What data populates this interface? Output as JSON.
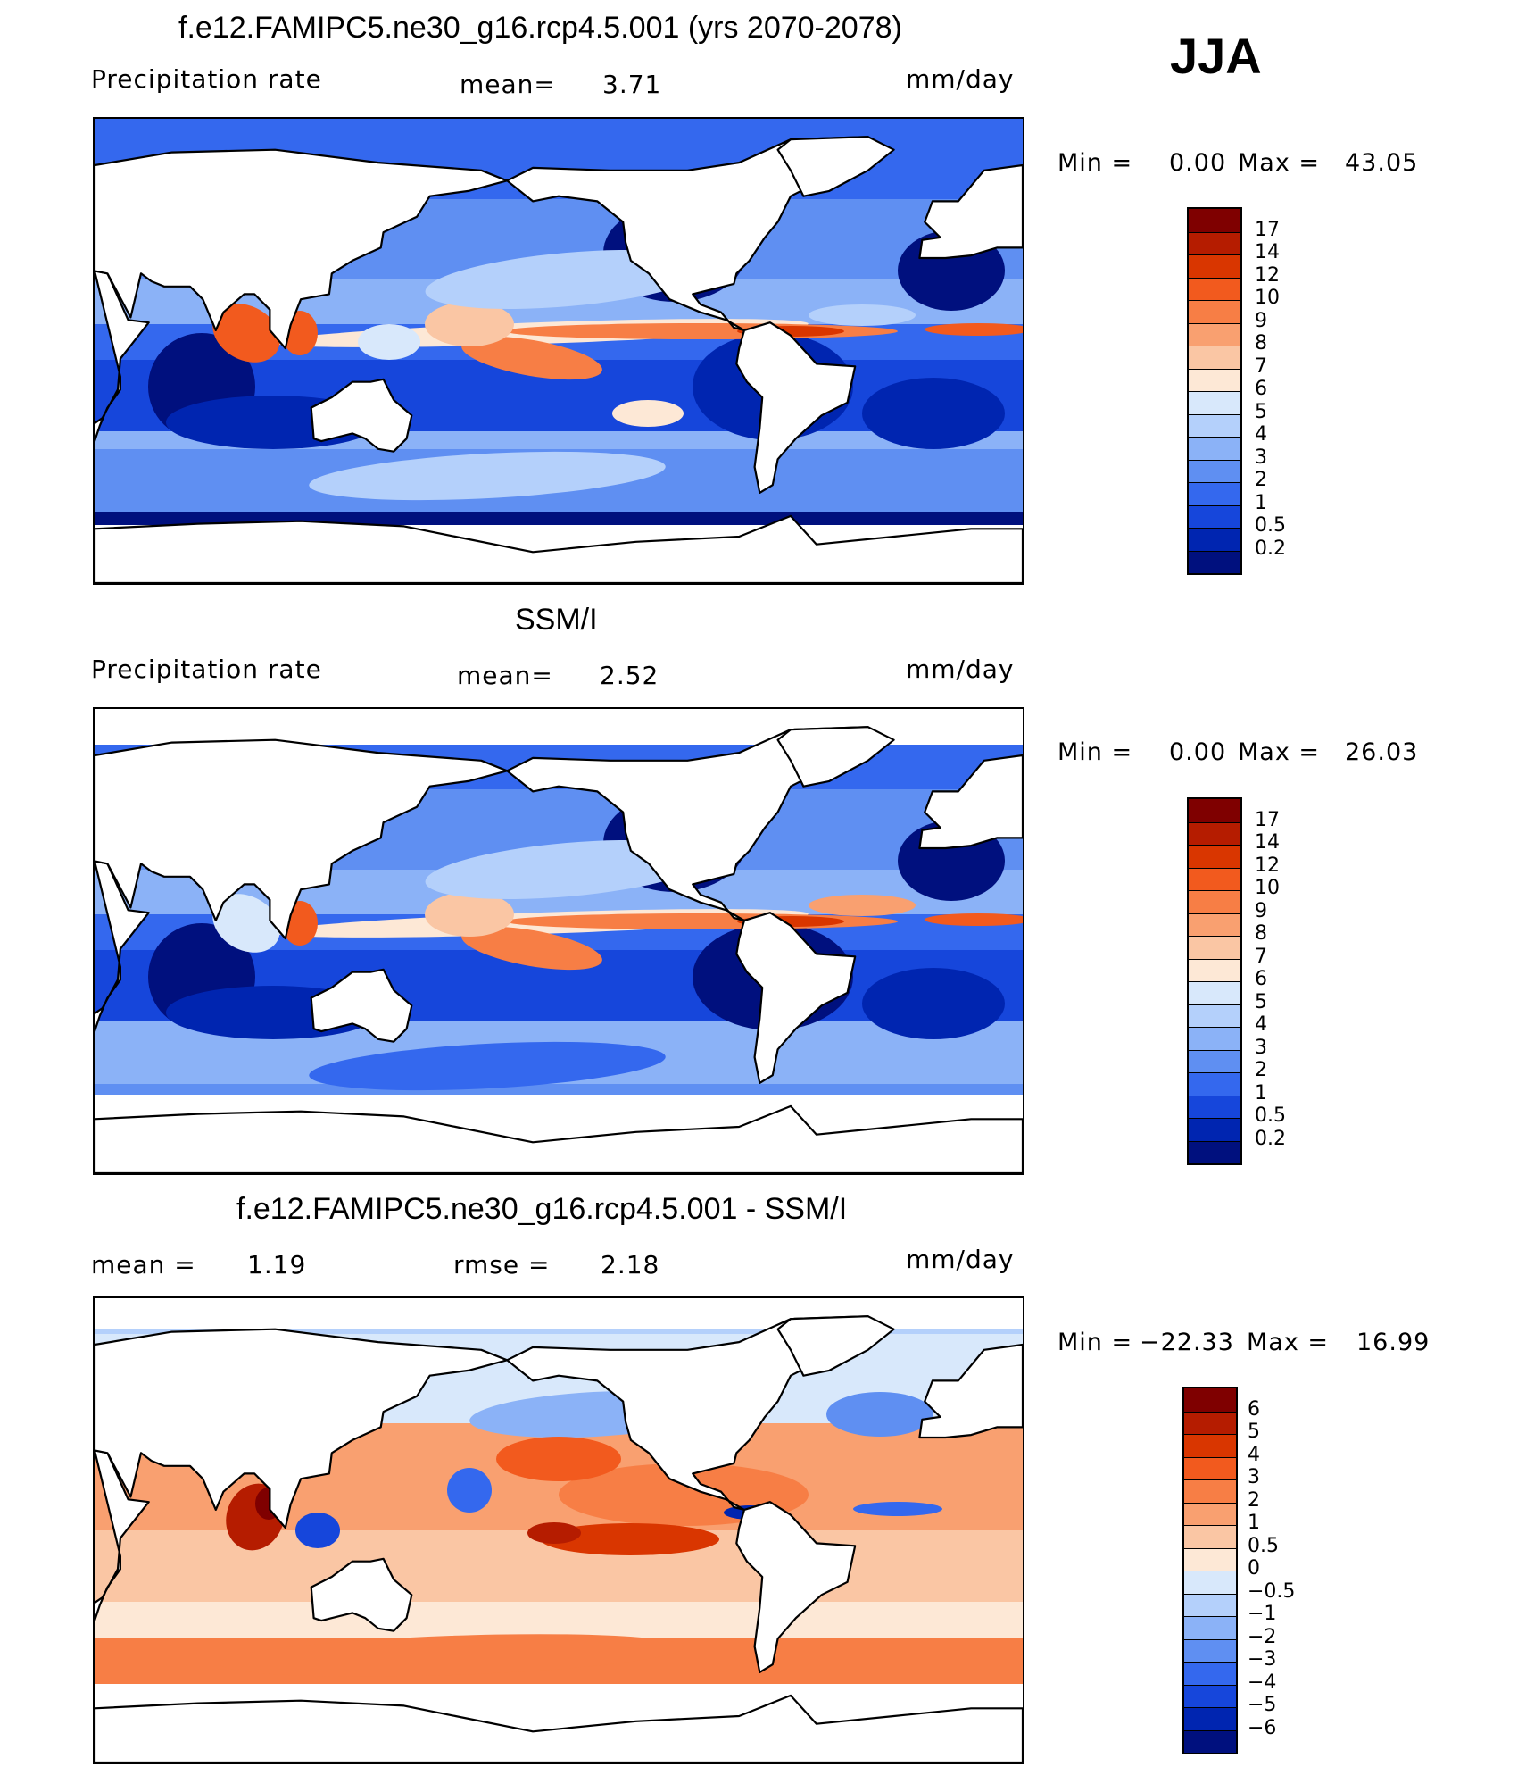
{
  "season": "JJA",
  "panels": [
    {
      "title": "f.e12.FAMIPC5.ne30_g16.rcp4.5.001 (yrs 2070-2078)",
      "left_label": "Precipitation  rate",
      "stat1_label": "mean=",
      "stat1_value": "3.71",
      "stat2_label": "",
      "stat2_value": "",
      "units": "mm/day",
      "min_label": "Min  =",
      "min_value": "0.00",
      "max_label": "Max  =",
      "max_value": "43.05",
      "field": "model"
    },
    {
      "title": "SSM/I",
      "left_label": "Precipitation  rate",
      "stat1_label": "mean=",
      "stat1_value": "2.52",
      "stat2_label": "",
      "stat2_value": "",
      "units": "mm/day",
      "min_label": "Min  =",
      "min_value": "0.00",
      "max_label": "Max  =",
      "max_value": "26.03",
      "field": "obs"
    },
    {
      "title": "f.e12.FAMIPC5.ne30_g16.rcp4.5.001 - SSM/I",
      "left_label": "mean  =",
      "stat1_label": "1.19",
      "stat1_value": "",
      "stat2_label": "rmse  =",
      "stat2_value": "2.18",
      "units": "mm/day",
      "min_label": "Min  =",
      "min_value": "−22.33",
      "max_label": "Max  =",
      "max_value": "16.99",
      "field": "diff"
    }
  ],
  "chart_data": {
    "type": "heatmap",
    "colorbars": [
      {
        "levels": [
          "17",
          "14",
          "12",
          "10",
          "9",
          "8",
          "7",
          "6",
          "5",
          "4",
          "3",
          "2",
          "1",
          "0.5",
          "0.2"
        ],
        "colors": [
          "#7f0000",
          "#b51c00",
          "#d93600",
          "#f25a1e",
          "#f77e45",
          "#f9a070",
          "#fac6a4",
          "#fde8d6",
          "#d8e8fb",
          "#b4d0fb",
          "#8bb2f7",
          "#5f8ff2",
          "#3468ee",
          "#1646db",
          "#0025b0",
          "#00107e"
        ]
      },
      {
        "levels": [
          "17",
          "14",
          "12",
          "10",
          "9",
          "8",
          "7",
          "6",
          "5",
          "4",
          "3",
          "2",
          "1",
          "0.5",
          "0.2"
        ],
        "colors": [
          "#7f0000",
          "#b51c00",
          "#d93600",
          "#f25a1e",
          "#f77e45",
          "#f9a070",
          "#fac6a4",
          "#fde8d6",
          "#d8e8fb",
          "#b4d0fb",
          "#8bb2f7",
          "#5f8ff2",
          "#3468ee",
          "#1646db",
          "#0025b0",
          "#00107e"
        ]
      },
      {
        "levels": [
          "6",
          "5",
          "4",
          "3",
          "2",
          "1",
          "0.5",
          "0",
          "−0.5",
          "−1",
          "−2",
          "−3",
          "−4",
          "−5",
          "−6"
        ],
        "colors": [
          "#7f0000",
          "#b51c00",
          "#d93600",
          "#f25a1e",
          "#f77e45",
          "#f9a070",
          "#fac6a4",
          "#fde8d6",
          "#d8e8fb",
          "#b4d0fb",
          "#8bb2f7",
          "#5f8ff2",
          "#3468ee",
          "#1646db",
          "#0025b0",
          "#00107e"
        ]
      }
    ]
  }
}
